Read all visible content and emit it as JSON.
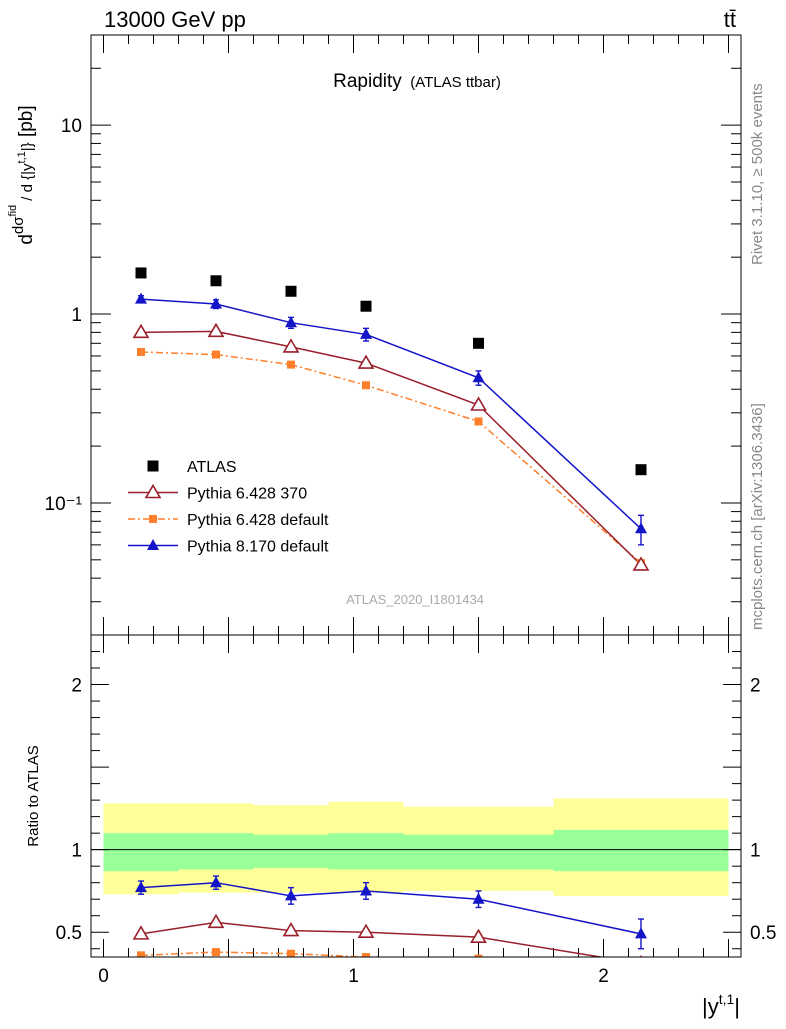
{
  "header": {
    "beam": "13000 GeV pp",
    "process": "tt̄"
  },
  "side": {
    "rivet": "Rivet 3.1.10, ≥ 500k events",
    "source": "mcplots.cern.ch [arXiv:1306.3436]"
  },
  "plot_title": {
    "main": "Rapidity",
    "sub": "(ATLAS ttbar)"
  },
  "watermark": "ATLAS_2020_I1801434",
  "legend": {
    "items": [
      {
        "label": "ATLAS"
      },
      {
        "label": "Pythia 6.428 370"
      },
      {
        "label": "Pythia 6.428 default"
      },
      {
        "label": "Pythia 8.170 default"
      }
    ]
  },
  "colors": {
    "atlas": "#000000",
    "p6_370": "#9a1f2b",
    "p6_default": "#ff7f2a",
    "p8": "#1414c8",
    "band_inner": "#99ff99",
    "band_outer": "#ffff99"
  },
  "chart_data": [
    {
      "type": "scatter",
      "panel": "main",
      "yscale": "log",
      "xlim": [
        -0.05,
        2.55
      ],
      "ylim": [
        0.02,
        30
      ],
      "xlabel": "|y^{t,1}|",
      "ylabel": "dσ^{fid} / d {|y^{t,1}|} [pb]",
      "yticks": [
        {
          "value": 0.1,
          "label": "10⁻¹"
        },
        {
          "value": 1,
          "label": "1"
        },
        {
          "value": 10,
          "label": "10"
        }
      ],
      "xticks": [
        {
          "value": 0,
          "label": "0"
        },
        {
          "value": 1,
          "label": "1"
        },
        {
          "value": 2,
          "label": "2"
        }
      ],
      "x": [
        0.15,
        0.45,
        0.75,
        1.05,
        1.5,
        2.15
      ],
      "series": [
        {
          "name": "ATLAS",
          "values": [
            1.65,
            1.5,
            1.32,
            1.1,
            0.7,
            0.15
          ]
        },
        {
          "name": "Pythia 6.428 370",
          "values": [
            0.8,
            0.81,
            0.67,
            0.55,
            0.33,
            0.047
          ]
        },
        {
          "name": "Pythia 6.428 default",
          "values": [
            0.63,
            0.61,
            0.54,
            0.42,
            0.27,
            0.048
          ]
        },
        {
          "name": "Pythia 8.170 default",
          "values": [
            1.2,
            1.13,
            0.9,
            0.78,
            0.46,
            0.073
          ]
        }
      ],
      "errors": {
        "Pythia 8.170 default": [
          0.05,
          0.06,
          0.06,
          0.06,
          0.04,
          0.013
        ]
      }
    },
    {
      "type": "line",
      "panel": "ratio",
      "ylabel": "Ratio to ATLAS",
      "ylim": [
        0.35,
        2.3
      ],
      "yticks": [
        {
          "value": 0.5,
          "label": "0.5"
        },
        {
          "value": 1,
          "label": "1"
        },
        {
          "value": 2,
          "label": "2"
        }
      ],
      "bins": [
        [
          0,
          0.3
        ],
        [
          0.3,
          0.6
        ],
        [
          0.6,
          0.9
        ],
        [
          0.9,
          1.2
        ],
        [
          1.2,
          1.8
        ],
        [
          1.8,
          2.5
        ]
      ],
      "band_inner": [
        [
          0.87,
          1.1
        ],
        [
          0.88,
          1.1
        ],
        [
          0.89,
          1.09
        ],
        [
          0.88,
          1.1
        ],
        [
          0.88,
          1.09
        ],
        [
          0.87,
          1.12
        ]
      ],
      "band_outer": [
        [
          0.73,
          1.28
        ],
        [
          0.74,
          1.28
        ],
        [
          0.74,
          1.27
        ],
        [
          0.74,
          1.29
        ],
        [
          0.75,
          1.26
        ],
        [
          0.72,
          1.31
        ]
      ],
      "x": [
        0.15,
        0.45,
        0.75,
        1.05,
        1.5,
        2.15
      ],
      "series": [
        {
          "name": "Pythia 8.170 default",
          "values": [
            0.77,
            0.8,
            0.72,
            0.75,
            0.7,
            0.49
          ],
          "errors": [
            0.04,
            0.04,
            0.05,
            0.05,
            0.05,
            0.09
          ]
        },
        {
          "name": "Pythia 6.428 370",
          "values": [
            0.49,
            0.56,
            0.51,
            0.5,
            0.47,
            0.31
          ]
        },
        {
          "name": "Pythia 6.428 default",
          "values": [
            0.36,
            0.38,
            0.37,
            0.35,
            0.34,
            0.32
          ]
        }
      ]
    }
  ]
}
